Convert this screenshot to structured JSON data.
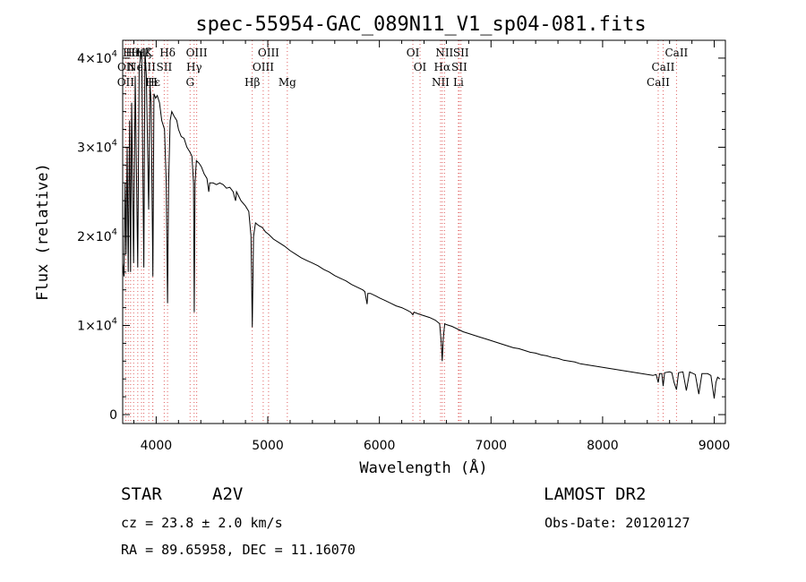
{
  "chart_data": {
    "type": "line",
    "title": "spec-55954-GAC_089N11_V1_sp04-081.fits",
    "xlabel": "Wavelength (Å)",
    "ylabel": "Flux (relative)",
    "xlim": [
      3700,
      9100
    ],
    "ylim": [
      -1000,
      42000
    ],
    "x_ticks": [
      4000,
      5000,
      6000,
      7000,
      8000,
      9000
    ],
    "y_ticks": [
      {
        "value": 0,
        "label": "0"
      },
      {
        "value": 10000,
        "label": "1×10",
        "exp": "4"
      },
      {
        "value": 20000,
        "label": "2×10",
        "exp": "4"
      },
      {
        "value": 30000,
        "label": "3×10",
        "exp": "4"
      },
      {
        "value": 40000,
        "label": "4×10",
        "exp": "4"
      }
    ],
    "grid": false,
    "series": [
      {
        "color": "#000000",
        "points": [
          [
            3700,
            17000
          ],
          [
            3712,
            15500
          ],
          [
            3722,
            26000
          ],
          [
            3730,
            18000
          ],
          [
            3740,
            30000
          ],
          [
            3750,
            16000
          ],
          [
            3762,
            33000
          ],
          [
            3771,
            16000
          ],
          [
            3780,
            35000
          ],
          [
            3798,
            17000
          ],
          [
            3812,
            38000
          ],
          [
            3835,
            16500
          ],
          [
            3848,
            39000
          ],
          [
            3860,
            40000
          ],
          [
            3870,
            41000
          ],
          [
            3889,
            16500
          ],
          [
            3900,
            41000
          ],
          [
            3912,
            38000
          ],
          [
            3933,
            23000
          ],
          [
            3945,
            37000
          ],
          [
            3955,
            35000
          ],
          [
            3970,
            15500
          ],
          [
            3980,
            36000
          ],
          [
            3995,
            35500
          ],
          [
            4010,
            35800
          ],
          [
            4030,
            35000
          ],
          [
            4050,
            33000
          ],
          [
            4075,
            32000
          ],
          [
            4090,
            26000
          ],
          [
            4102,
            12500
          ],
          [
            4112,
            26000
          ],
          [
            4125,
            33000
          ],
          [
            4140,
            34000
          ],
          [
            4160,
            33500
          ],
          [
            4185,
            33000
          ],
          [
            4200,
            32000
          ],
          [
            4225,
            31200
          ],
          [
            4250,
            31000
          ],
          [
            4275,
            30000
          ],
          [
            4300,
            29500
          ],
          [
            4320,
            29000
          ],
          [
            4335,
            26000
          ],
          [
            4341,
            11500
          ],
          [
            4348,
            26000
          ],
          [
            4360,
            28500
          ],
          [
            4385,
            28200
          ],
          [
            4405,
            27800
          ],
          [
            4430,
            27000
          ],
          [
            4455,
            26500
          ],
          [
            4471,
            25000
          ],
          [
            4480,
            26000
          ],
          [
            4510,
            26000
          ],
          [
            4540,
            25800
          ],
          [
            4570,
            26000
          ],
          [
            4600,
            25800
          ],
          [
            4630,
            25400
          ],
          [
            4660,
            25500
          ],
          [
            4690,
            25000
          ],
          [
            4700,
            24500
          ],
          [
            4712,
            24000
          ],
          [
            4720,
            25000
          ],
          [
            4760,
            24000
          ],
          [
            4800,
            23400
          ],
          [
            4830,
            22800
          ],
          [
            4850,
            20000
          ],
          [
            4861,
            9800
          ],
          [
            4872,
            20000
          ],
          [
            4890,
            21500
          ],
          [
            4920,
            21200
          ],
          [
            4950,
            21000
          ],
          [
            4980,
            20500
          ],
          [
            5010,
            20200
          ],
          [
            5050,
            19700
          ],
          [
            5100,
            19300
          ],
          [
            5150,
            18900
          ],
          [
            5200,
            18400
          ],
          [
            5250,
            18000
          ],
          [
            5300,
            17600
          ],
          [
            5350,
            17300
          ],
          [
            5400,
            17000
          ],
          [
            5450,
            16700
          ],
          [
            5500,
            16300
          ],
          [
            5550,
            16000
          ],
          [
            5600,
            15600
          ],
          [
            5650,
            15300
          ],
          [
            5700,
            15000
          ],
          [
            5750,
            14600
          ],
          [
            5800,
            14300
          ],
          [
            5850,
            14000
          ],
          [
            5870,
            13800
          ],
          [
            5890,
            12400
          ],
          [
            5896,
            13600
          ],
          [
            5920,
            13600
          ],
          [
            5970,
            13300
          ],
          [
            6000,
            13100
          ],
          [
            6050,
            12800
          ],
          [
            6100,
            12500
          ],
          [
            6150,
            12200
          ],
          [
            6200,
            12000
          ],
          [
            6250,
            11700
          ],
          [
            6280,
            11500
          ],
          [
            6300,
            11200
          ],
          [
            6310,
            11500
          ],
          [
            6350,
            11300
          ],
          [
            6400,
            11100
          ],
          [
            6450,
            10900
          ],
          [
            6500,
            10600
          ],
          [
            6540,
            10200
          ],
          [
            6555,
            8000
          ],
          [
            6563,
            6000
          ],
          [
            6572,
            8500
          ],
          [
            6585,
            10200
          ],
          [
            6600,
            10100
          ],
          [
            6650,
            9900
          ],
          [
            6700,
            9600
          ],
          [
            6750,
            9300
          ],
          [
            6800,
            9100
          ],
          [
            6850,
            8900
          ],
          [
            6900,
            8700
          ],
          [
            6950,
            8500
          ],
          [
            7000,
            8300
          ],
          [
            7050,
            8100
          ],
          [
            7100,
            7900
          ],
          [
            7150,
            7700
          ],
          [
            7200,
            7500
          ],
          [
            7250,
            7400
          ],
          [
            7300,
            7200
          ],
          [
            7350,
            7000
          ],
          [
            7400,
            6900
          ],
          [
            7450,
            6700
          ],
          [
            7500,
            6600
          ],
          [
            7550,
            6400
          ],
          [
            7600,
            6300
          ],
          [
            7650,
            6100
          ],
          [
            7700,
            6000
          ],
          [
            7750,
            5900
          ],
          [
            7800,
            5700
          ],
          [
            7850,
            5600
          ],
          [
            7900,
            5500
          ],
          [
            7950,
            5400
          ],
          [
            8000,
            5300
          ],
          [
            8050,
            5200
          ],
          [
            8100,
            5100
          ],
          [
            8150,
            5000
          ],
          [
            8200,
            4900
          ],
          [
            8250,
            4800
          ],
          [
            8300,
            4700
          ],
          [
            8350,
            4600
          ],
          [
            8400,
            4500
          ],
          [
            8450,
            4400
          ],
          [
            8480,
            4500
          ],
          [
            8498,
            3600
          ],
          [
            8510,
            4600
          ],
          [
            8530,
            4600
          ],
          [
            8542,
            3200
          ],
          [
            8555,
            4700
          ],
          [
            8600,
            4800
          ],
          [
            8620,
            4700
          ],
          [
            8640,
            3600
          ],
          [
            8662,
            2800
          ],
          [
            8680,
            4700
          ],
          [
            8720,
            4800
          ],
          [
            8750,
            2700
          ],
          [
            8780,
            4800
          ],
          [
            8830,
            4500
          ],
          [
            8862,
            2300
          ],
          [
            8890,
            4600
          ],
          [
            8940,
            4600
          ],
          [
            8970,
            4400
          ],
          [
            9000,
            1800
          ],
          [
            9015,
            3600
          ],
          [
            9030,
            4200
          ],
          [
            9050,
            4000
          ]
        ]
      }
    ],
    "reference_lines": [
      {
        "x": 3727,
        "label": "OII",
        "row": 2
      },
      {
        "x": 3729,
        "label": "OII",
        "row": 1
      },
      {
        "x": 3750,
        "label": "",
        "row": 0
      },
      {
        "x": 3771,
        "label": "Hθ",
        "row": 0
      },
      {
        "x": 3798,
        "label": "Hη",
        "row": 0
      },
      {
        "x": 3835,
        "label": "",
        "row": 0
      },
      {
        "x": 3869,
        "label": "NeIII",
        "row": 1
      },
      {
        "x": 3889,
        "label": "Hζ",
        "row": 0
      },
      {
        "x": 3934,
        "label": "K",
        "row": 0
      },
      {
        "x": 3969,
        "label": "H",
        "row": 2
      },
      {
        "x": 3970,
        "label": "Hε",
        "row": 2
      },
      {
        "x": 4072,
        "label": "SII",
        "row": 1
      },
      {
        "x": 4102,
        "label": "Hδ",
        "row": 0
      },
      {
        "x": 4304,
        "label": "G",
        "row": 2
      },
      {
        "x": 4340,
        "label": "Hγ",
        "row": 1
      },
      {
        "x": 4363,
        "label": "OIII",
        "row": 0
      },
      {
        "x": 4861,
        "label": "Hβ",
        "row": 2
      },
      {
        "x": 4959,
        "label": "OIII",
        "row": 1
      },
      {
        "x": 5007,
        "label": "OIII",
        "row": 0
      },
      {
        "x": 5175,
        "label": "Mg",
        "row": 2
      },
      {
        "x": 6300,
        "label": "OI",
        "row": 0
      },
      {
        "x": 6364,
        "label": "OI",
        "row": 1
      },
      {
        "x": 6548,
        "label": "NII",
        "row": 2
      },
      {
        "x": 6563,
        "label": "Hα",
        "row": 1
      },
      {
        "x": 6583,
        "label": "NII",
        "row": 0
      },
      {
        "x": 6708,
        "label": "Li",
        "row": 2
      },
      {
        "x": 6716,
        "label": "SII",
        "row": 1
      },
      {
        "x": 6731,
        "label": "SII",
        "row": 0
      },
      {
        "x": 8498,
        "label": "CaII",
        "row": 2
      },
      {
        "x": 8542,
        "label": "CaII",
        "row": 1
      },
      {
        "x": 8662,
        "label": "CaII",
        "row": 0
      }
    ]
  },
  "info": {
    "class_label": "STAR",
    "subclass": "A2V",
    "survey": "LAMOST DR2",
    "cz": "cz = 23.8 ± 2.0 km/s",
    "obs_date": "Obs-Date: 20120127",
    "radec": "RA =  89.65958, DEC =  11.16070"
  }
}
